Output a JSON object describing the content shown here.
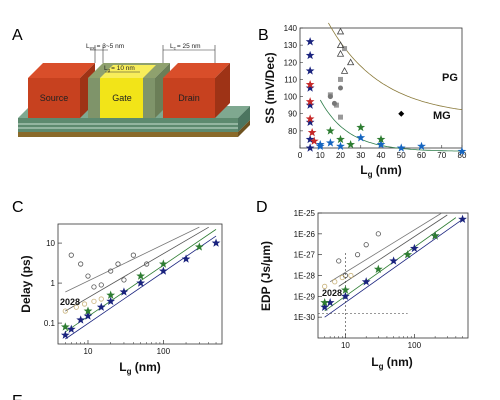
{
  "panels": {
    "a": {
      "label": "A",
      "source_label": "Source",
      "gate_label": "Gate",
      "drain_label": "Drain",
      "lext_label": "L",
      "lext_sub": "ext",
      "lext_value": "= 3~5 nm",
      "lg_label": "L",
      "lg_sub": "g",
      "lg_value": "= 10 nm",
      "lc_label": "L",
      "lc_sub": "c",
      "lc_value": "= 25 nm"
    },
    "b": {
      "label": "B"
    },
    "c": {
      "label": "C"
    },
    "d": {
      "label": "D"
    },
    "e": {
      "label": "E"
    }
  },
  "chart_data": [
    {
      "id": "B",
      "type": "scatter",
      "xlabel": "Lg (nm)",
      "ylabel": "SS (mV/Dec)",
      "xlim": [
        0,
        80
      ],
      "ylim": [
        70,
        140
      ],
      "xticks": [
        "0",
        "10",
        "20",
        "30",
        "40",
        "50",
        "60",
        "70",
        "80"
      ],
      "yticks": [
        "80",
        "90",
        "100",
        "110",
        "120",
        "130",
        "140"
      ],
      "annotations": [
        "PG",
        "MG"
      ],
      "series": [
        {
          "points": [
            [
              5,
              132
            ],
            [
              5,
              124
            ],
            [
              5,
              115
            ],
            [
              5,
              105
            ],
            [
              5,
              95
            ],
            [
              5,
              85
            ],
            [
              5,
              75
            ],
            [
              5,
              70
            ]
          ],
          "color": "#1a237e",
          "marker": "star"
        },
        {
          "points": [
            [
              5,
              107
            ],
            [
              5,
              97
            ],
            [
              5,
              87
            ],
            [
              6,
              79
            ],
            [
              7,
              74
            ]
          ],
          "color": "#c62828",
          "marker": "star"
        },
        {
          "points": [
            [
              10,
              72
            ],
            [
              10,
              71
            ],
            [
              15,
              73
            ],
            [
              20,
              71
            ],
            [
              30,
              76
            ],
            [
              40,
              72
            ],
            [
              50,
              70
            ],
            [
              60,
              71
            ],
            [
              80,
              68
            ]
          ],
          "color": "#1565c0",
          "marker": "star"
        },
        {
          "points": [
            [
              15,
              80
            ],
            [
              20,
              75
            ],
            [
              25,
              72
            ],
            [
              30,
              82
            ],
            [
              40,
              75
            ]
          ],
          "color": "#2e7d32",
          "marker": "star"
        },
        {
          "points": [
            [
              15,
              101
            ],
            [
              18,
              95
            ],
            [
              20,
              110
            ],
            [
              20,
              88
            ],
            [
              22,
              128
            ]
          ],
          "color": "#999999",
          "marker": "square"
        },
        {
          "points": [
            [
              20,
              138
            ],
            [
              20,
              130
            ],
            [
              20,
              125
            ],
            [
              22,
              115
            ],
            [
              25,
              120
            ]
          ],
          "color": "#444444",
          "marker": "triangle-open"
        },
        {
          "points": [
            [
              15,
              100
            ],
            [
              20,
              105
            ],
            [
              17,
              96
            ]
          ],
          "color": "#777777",
          "marker": "circle"
        },
        {
          "points": [
            [
              50,
              90
            ]
          ],
          "color": "#000000",
          "marker": "diamond"
        }
      ]
    },
    {
      "id": "C",
      "type": "scatter",
      "xlabel": "Lg (nm)",
      "ylabel": "Delay (ps)",
      "xlim": [
        4,
        600
      ],
      "ylim": [
        0.03,
        30
      ],
      "xticks": [
        "10",
        "100"
      ],
      "yticks": [
        "0.1",
        "1",
        "10"
      ],
      "annotations": [
        "2028"
      ],
      "series": [
        {
          "points": [
            [
              5,
              0.05
            ],
            [
              6,
              0.07
            ],
            [
              8,
              0.12
            ],
            [
              10,
              0.15
            ],
            [
              15,
              0.25
            ],
            [
              20,
              0.35
            ],
            [
              30,
              0.6
            ],
            [
              50,
              1.0
            ],
            [
              100,
              2.0
            ],
            [
              200,
              4.0
            ],
            [
              500,
              10.0
            ]
          ],
          "color": "#1a237e",
          "marker": "star"
        },
        {
          "points": [
            [
              5,
              0.08
            ],
            [
              10,
              0.2
            ],
            [
              20,
              0.5
            ],
            [
              50,
              1.5
            ],
            [
              100,
              3.0
            ],
            [
              300,
              8.0
            ]
          ],
          "color": "#2e7d32",
          "marker": "star"
        },
        {
          "points": [
            [
              6,
              5
            ],
            [
              8,
              3
            ],
            [
              10,
              1.5
            ],
            [
              12,
              0.8
            ],
            [
              15,
              0.9
            ],
            [
              20,
              2
            ],
            [
              25,
              3
            ],
            [
              30,
              1.2
            ],
            [
              40,
              5
            ],
            [
              60,
              3
            ]
          ],
          "color": "#555555",
          "marker": "circle-open"
        },
        {
          "points": [
            [
              5,
              0.2
            ],
            [
              7,
              0.25
            ],
            [
              9,
              0.3
            ],
            [
              12,
              0.35
            ],
            [
              15,
              0.4
            ]
          ],
          "color": "#c9b37a",
          "marker": "circle-open"
        }
      ]
    },
    {
      "id": "D",
      "type": "scatter",
      "xlabel": "Lg (nm)",
      "ylabel": "EDP (Js/µm)",
      "xlim": [
        4,
        600
      ],
      "ylim": [
        1e-31,
        1e-25
      ],
      "xticks": [
        "10",
        "100"
      ],
      "yticks": [
        "1E-30",
        "1E-29",
        "1E-28",
        "1E-27",
        "1E-26",
        "1E-25"
      ],
      "annotations": [
        "2028"
      ],
      "series": [
        {
          "points": [
            [
              5,
              3e-30
            ],
            [
              6,
              5e-30
            ],
            [
              10,
              1e-29
            ],
            [
              20,
              5e-29
            ],
            [
              50,
              5e-28
            ],
            [
              100,
              2e-27
            ],
            [
              200,
              8e-27
            ],
            [
              500,
              5e-26
            ]
          ],
          "color": "#1a237e",
          "marker": "star"
        },
        {
          "points": [
            [
              5,
              5e-30
            ],
            [
              10,
              2e-29
            ],
            [
              30,
              2e-28
            ],
            [
              80,
              1e-27
            ],
            [
              200,
              8e-27
            ]
          ],
          "color": "#2e7d32",
          "marker": "star"
        },
        {
          "points": [
            [
              8,
              5e-28
            ],
            [
              10,
              1e-28
            ],
            [
              15,
              1e-27
            ],
            [
              20,
              3e-27
            ],
            [
              30,
              1e-26
            ]
          ],
          "color": "#555555",
          "marker": "circle-open"
        },
        {
          "points": [
            [
              5,
              3e-29
            ],
            [
              7,
              5e-29
            ],
            [
              9,
              8e-29
            ],
            [
              12,
              1e-28
            ]
          ],
          "color": "#c9b37a",
          "marker": "circle-open"
        }
      ]
    }
  ]
}
